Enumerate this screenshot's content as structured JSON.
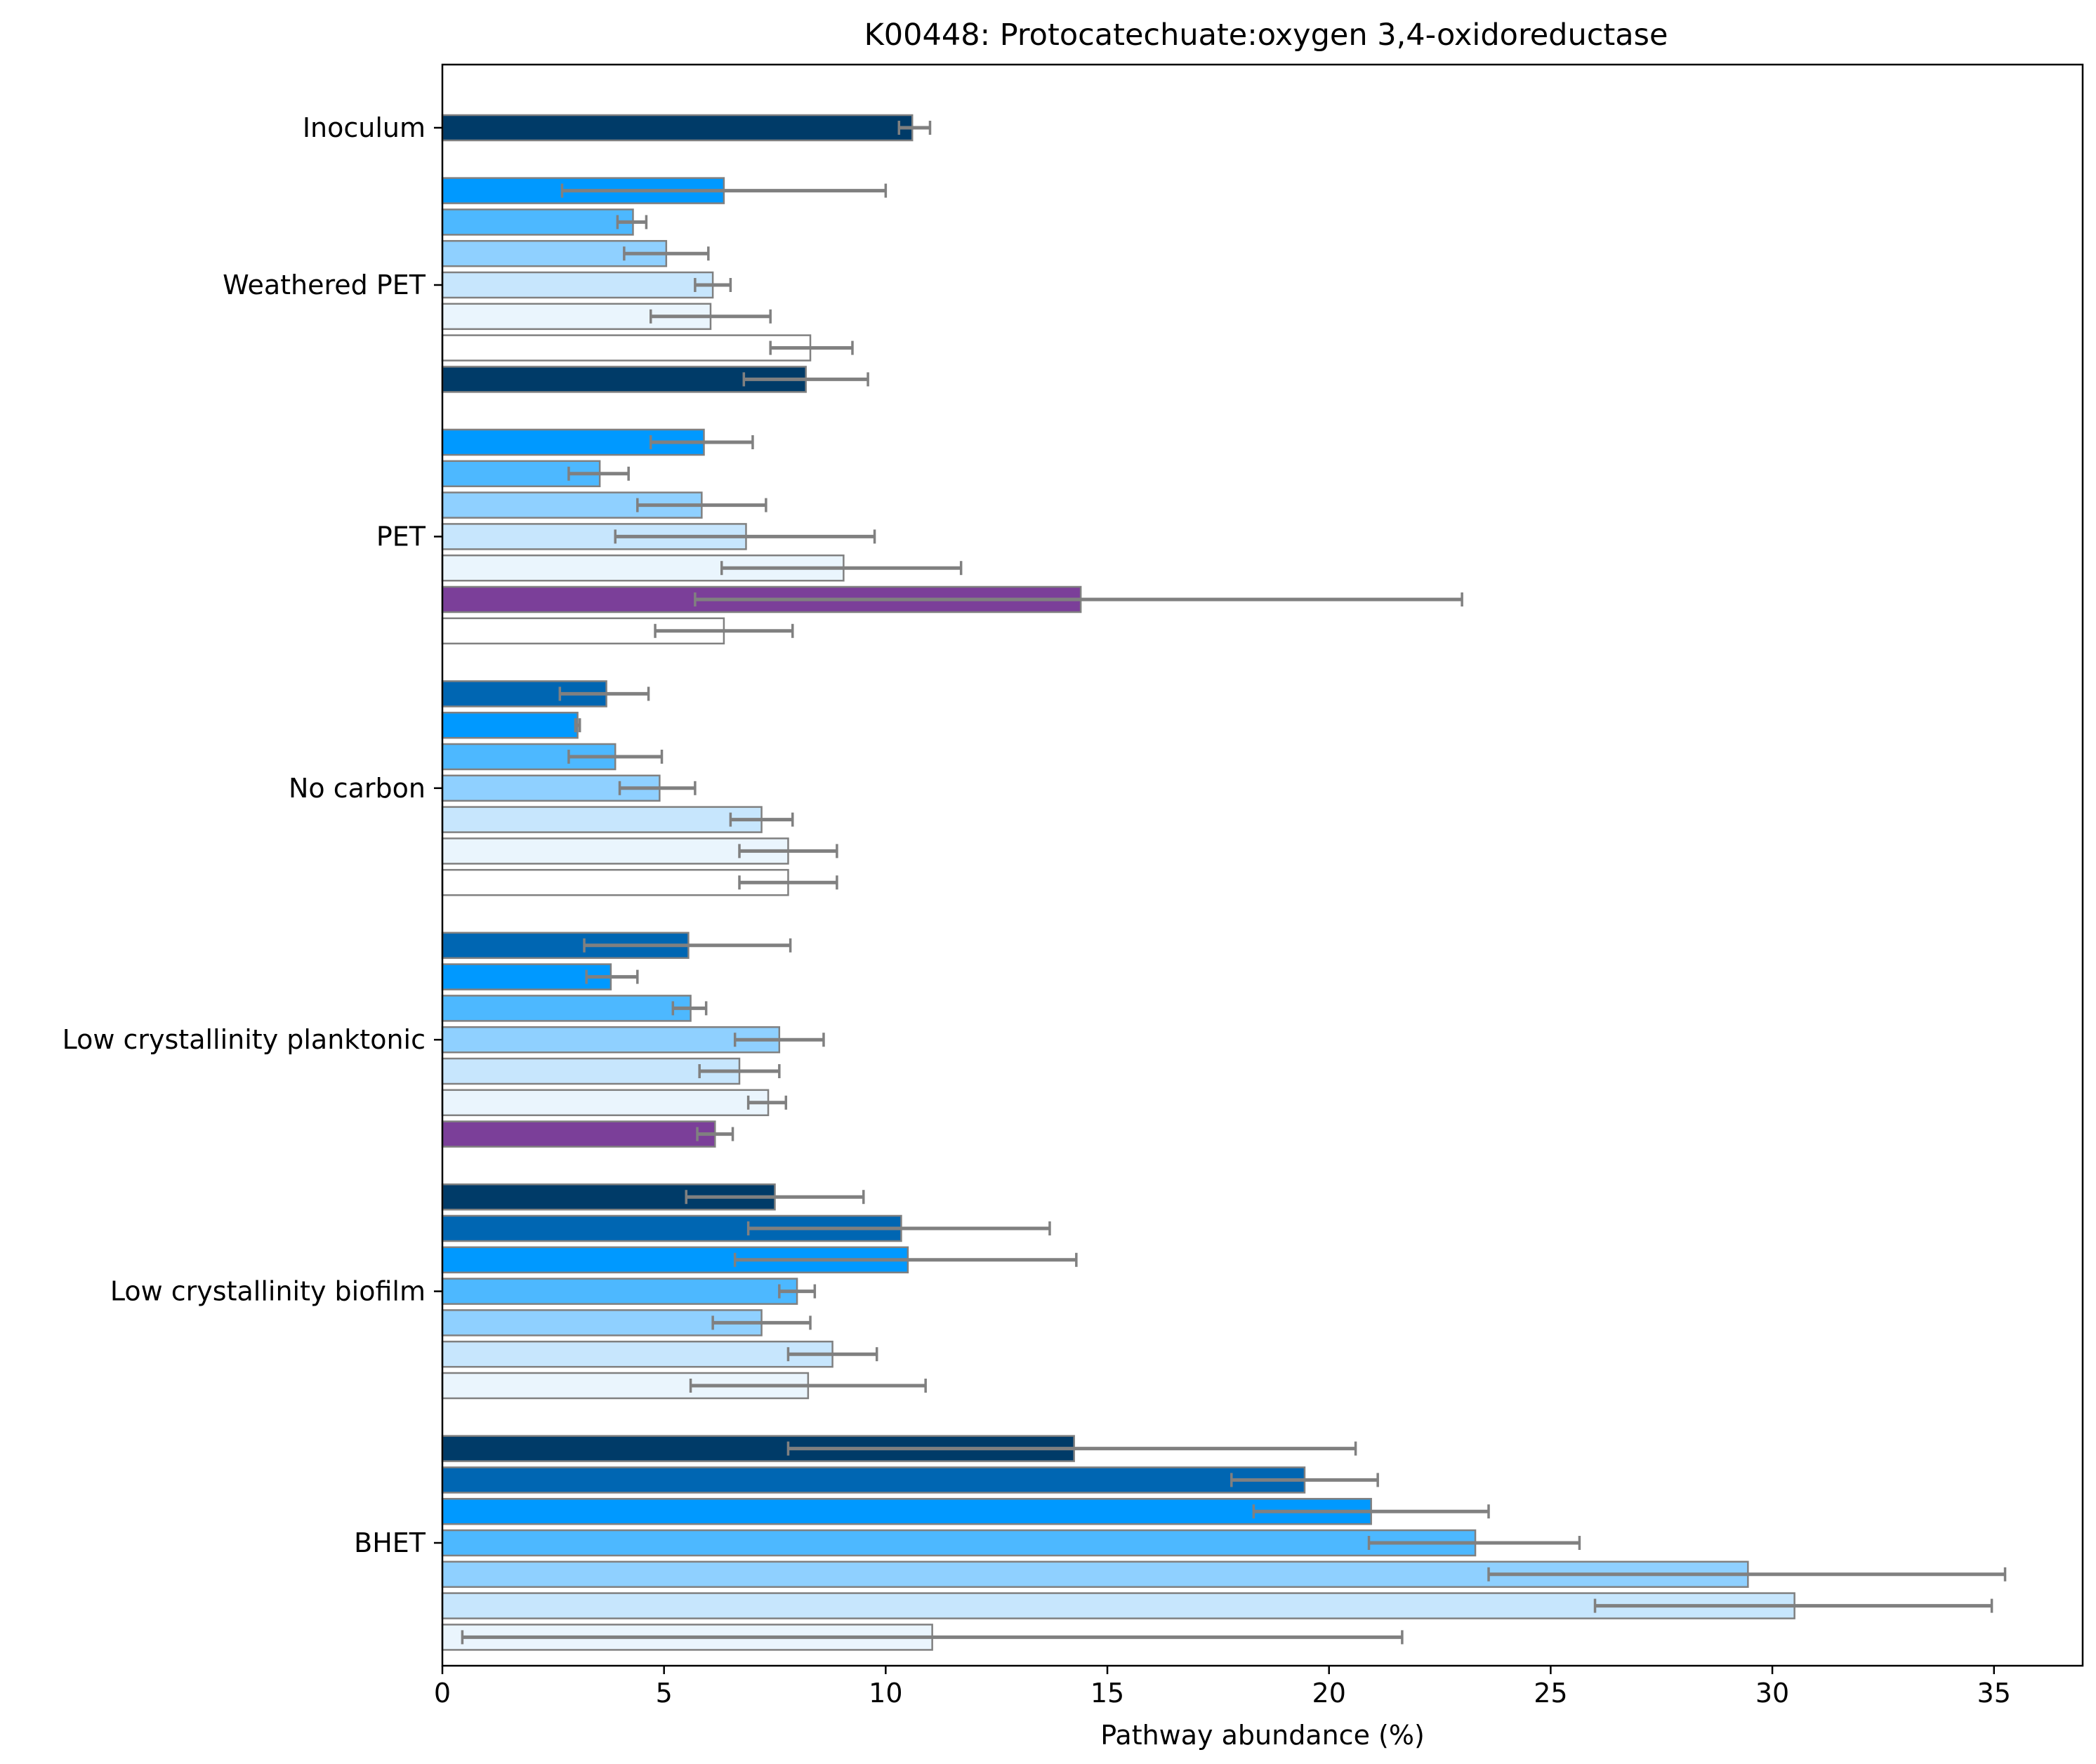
{
  "chart_data": {
    "type": "bar",
    "orientation": "horizontal",
    "title": "K00448: Protocatechuate:oxygen 3,4-oxidoreductase",
    "xlabel": "Pathway abundance (%)",
    "ylabel": "",
    "xlim": [
      0,
      37
    ],
    "xticks": [
      0,
      5,
      10,
      15,
      20,
      25,
      30,
      35
    ],
    "grid": false,
    "legend": "none",
    "bar_edge_color": "#808080",
    "error_bar_color": "#808080",
    "groups": [
      {
        "name": "Inoculum",
        "bars": [
          {
            "value": 10.6,
            "err_low": 10.3,
            "err_high": 11.0,
            "color": "#003b68"
          }
        ]
      },
      {
        "name": "Weathered PET",
        "bars": [
          {
            "value": 6.35,
            "err_low": 2.7,
            "err_high": 10.0,
            "color": "#0099ff"
          },
          {
            "value": 4.3,
            "err_low": 3.95,
            "err_high": 4.6,
            "color": "#4db8ff"
          },
          {
            "value": 5.05,
            "err_low": 4.1,
            "err_high": 6.0,
            "color": "#8fd0ff"
          },
          {
            "value": 6.1,
            "err_low": 5.7,
            "err_high": 6.5,
            "color": "#c7e6fd"
          },
          {
            "value": 6.05,
            "err_low": 4.7,
            "err_high": 7.4,
            "color": "#eaf5fd"
          },
          {
            "value": 8.3,
            "err_low": 7.4,
            "err_high": 9.25,
            "color": "#ffffff"
          },
          {
            "value": 8.2,
            "err_low": 6.8,
            "err_high": 9.6,
            "color": "#003b68"
          }
        ]
      },
      {
        "name": "PET",
        "bars": [
          {
            "value": 5.9,
            "err_low": 4.7,
            "err_high": 7.0,
            "color": "#0099ff"
          },
          {
            "value": 3.55,
            "err_low": 2.85,
            "err_high": 4.2,
            "color": "#4db8ff"
          },
          {
            "value": 5.85,
            "err_low": 4.4,
            "err_high": 7.3,
            "color": "#8fd0ff"
          },
          {
            "value": 6.85,
            "err_low": 3.9,
            "err_high": 9.75,
            "color": "#c7e6fd"
          },
          {
            "value": 9.05,
            "err_low": 6.3,
            "err_high": 11.7,
            "color": "#eaf5fd"
          },
          {
            "value": 14.4,
            "err_low": 5.7,
            "err_high": 23.0,
            "color": "#7b3f99"
          },
          {
            "value": 6.35,
            "err_low": 4.8,
            "err_high": 7.9,
            "color": "#ffffff"
          }
        ]
      },
      {
        "name": "No carbon",
        "bars": [
          {
            "value": 3.7,
            "err_low": 2.65,
            "err_high": 4.65,
            "color": "#0066b2"
          },
          {
            "value": 3.05,
            "err_low": 3.0,
            "err_high": 3.1,
            "color": "#0099ff"
          },
          {
            "value": 3.9,
            "err_low": 2.85,
            "err_high": 4.95,
            "color": "#4db8ff"
          },
          {
            "value": 4.9,
            "err_low": 4.0,
            "err_high": 5.7,
            "color": "#8fd0ff"
          },
          {
            "value": 7.2,
            "err_low": 6.5,
            "err_high": 7.9,
            "color": "#c7e6fd"
          },
          {
            "value": 7.8,
            "err_low": 6.7,
            "err_high": 8.9,
            "color": "#eaf5fd"
          },
          {
            "value": 7.8,
            "err_low": 6.7,
            "err_high": 8.9,
            "color": "#ffffff"
          }
        ]
      },
      {
        "name": "Low crystallinity planktonic",
        "bars": [
          {
            "value": 5.55,
            "err_low": 3.2,
            "err_high": 7.85,
            "color": "#0066b2"
          },
          {
            "value": 3.8,
            "err_low": 3.25,
            "err_high": 4.4,
            "color": "#0099ff"
          },
          {
            "value": 5.6,
            "err_low": 5.2,
            "err_high": 5.95,
            "color": "#4db8ff"
          },
          {
            "value": 7.6,
            "err_low": 6.6,
            "err_high": 8.6,
            "color": "#8fd0ff"
          },
          {
            "value": 6.7,
            "err_low": 5.8,
            "err_high": 7.6,
            "color": "#c7e6fd"
          },
          {
            "value": 7.35,
            "err_low": 6.9,
            "err_high": 7.75,
            "color": "#eaf5fd"
          },
          {
            "value": 6.15,
            "err_low": 5.75,
            "err_high": 6.55,
            "color": "#7b3f99"
          }
        ]
      },
      {
        "name": "Low crystallinity biofilm",
        "bars": [
          {
            "value": 7.5,
            "err_low": 5.5,
            "err_high": 9.5,
            "color": "#003b68"
          },
          {
            "value": 10.35,
            "err_low": 6.9,
            "err_high": 13.7,
            "color": "#0066b2"
          },
          {
            "value": 10.5,
            "err_low": 6.6,
            "err_high": 14.3,
            "color": "#0099ff"
          },
          {
            "value": 8.0,
            "err_low": 7.6,
            "err_high": 8.4,
            "color": "#4db8ff"
          },
          {
            "value": 7.2,
            "err_low": 6.1,
            "err_high": 8.3,
            "color": "#8fd0ff"
          },
          {
            "value": 8.8,
            "err_low": 7.8,
            "err_high": 9.8,
            "color": "#c7e6fd"
          },
          {
            "value": 8.25,
            "err_low": 5.6,
            "err_high": 10.9,
            "color": "#eaf5fd"
          }
        ]
      },
      {
        "name": "BHET",
        "bars": [
          {
            "value": 14.25,
            "err_low": 7.8,
            "err_high": 20.6,
            "color": "#003b68"
          },
          {
            "value": 19.45,
            "err_low": 17.8,
            "err_high": 21.1,
            "color": "#0066b2"
          },
          {
            "value": 20.95,
            "err_low": 18.3,
            "err_high": 23.6,
            "color": "#0099ff"
          },
          {
            "value": 23.3,
            "err_low": 20.9,
            "err_high": 25.65,
            "color": "#4db8ff"
          },
          {
            "value": 29.45,
            "err_low": 23.6,
            "err_high": 35.25,
            "color": "#8fd0ff"
          },
          {
            "value": 30.5,
            "err_low": 26.0,
            "err_high": 34.95,
            "color": "#c7e6fd"
          },
          {
            "value": 11.05,
            "err_low": 0.45,
            "err_high": 21.65,
            "color": "#eaf5fd"
          }
        ]
      }
    ]
  }
}
